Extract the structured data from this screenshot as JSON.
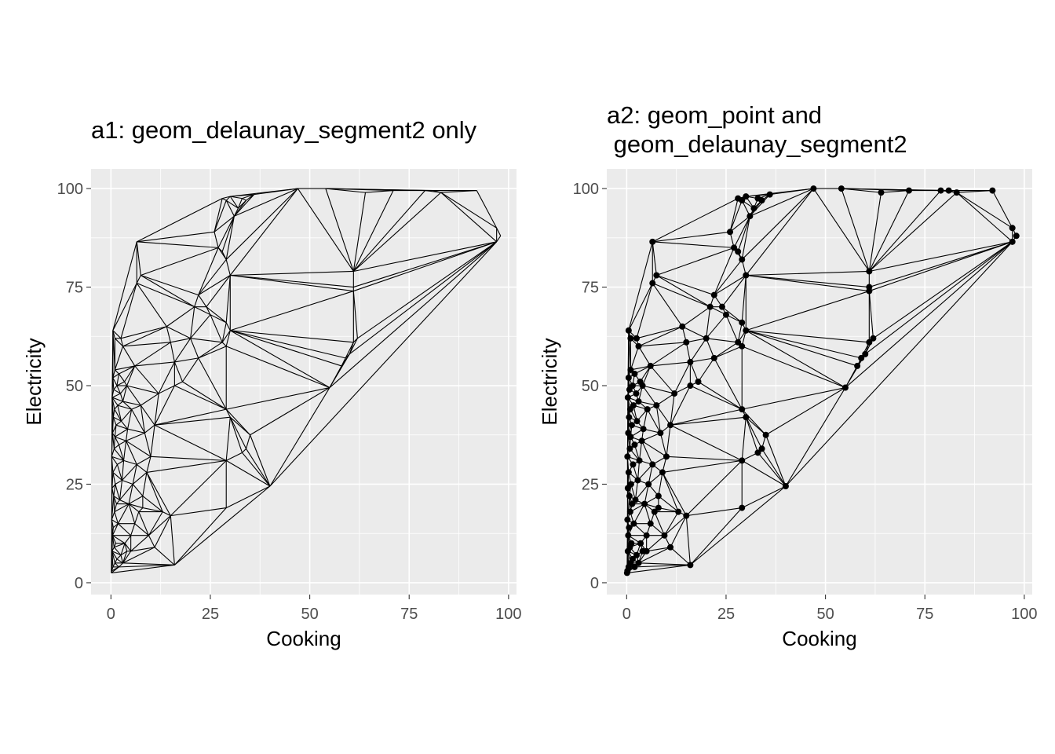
{
  "chart_data": [
    {
      "type": "scatter",
      "title_lines": [
        "a1: geom_delaunay_segment2 only"
      ],
      "xlabel": "Cooking",
      "ylabel": "Electricity",
      "xlim": [
        -5,
        102
      ],
      "ylim": [
        -3,
        105
      ],
      "xticks": [
        "0",
        "25",
        "50",
        "75",
        "100"
      ],
      "yticks": [
        "0",
        "25",
        "50",
        "75",
        "100"
      ],
      "show_points": false,
      "show_segments": true,
      "grid": true,
      "x": [
        0.1,
        0.2,
        0.5,
        1,
        1.5,
        2,
        0.3,
        0.8,
        1.2,
        0.4,
        2.5,
        3,
        0.6,
        1.8,
        0.2,
        0.9,
        3.5,
        4,
        1.4,
        0.7,
        2.2,
        5,
        0.3,
        1.1,
        2.8,
        0.5,
        6,
        1.6,
        3.2,
        0.2,
        0.8,
        4.5,
        7,
        2,
        1,
        0.4,
        3.8,
        5.5,
        8,
        1.3,
        0.6,
        2.6,
        9,
        4.2,
        0.9,
        1.7,
        6.5,
        3,
        0.3,
        10,
        2.4,
        5.2,
        0.7,
        8.5,
        1.5,
        4,
        11,
        3.4,
        0.5,
        7.5,
        2,
        12,
        6,
        1,
        16,
        9.5,
        15,
        13,
        5,
        8,
        11,
        3,
        2.5,
        16,
        6.5,
        15,
        7.5,
        14,
        28,
        30,
        29,
        33,
        36,
        32,
        31,
        34,
        26,
        27,
        28,
        29,
        30,
        22,
        24,
        25,
        29,
        30,
        29,
        28,
        20,
        21,
        22,
        18,
        16,
        35,
        34,
        33,
        29,
        30,
        29,
        40,
        29,
        47,
        54,
        64,
        61,
        61,
        61,
        71,
        79,
        81,
        83,
        92,
        97,
        98,
        97,
        59,
        60,
        61,
        62,
        58,
        55,
        0.5,
        1,
        6.5
      ],
      "y": [
        2.5,
        3,
        4,
        5,
        6,
        4,
        8,
        9,
        10,
        12,
        7,
        5,
        14,
        15,
        16,
        18,
        10,
        8,
        20,
        22,
        21,
        12,
        24,
        25,
        26,
        28,
        15,
        30,
        31,
        32,
        34,
        20,
        18,
        35,
        37,
        38,
        36,
        25,
        22,
        40,
        42,
        41,
        28,
        39,
        44,
        45,
        30,
        46,
        47,
        32,
        48,
        44,
        49,
        38,
        50,
        50,
        40,
        51,
        52,
        45,
        53,
        48,
        55,
        54,
        4.5,
        12,
        17,
        18,
        8,
        19,
        9,
        60,
        62,
        56,
        76,
        61,
        78,
        65,
        97.5,
        98,
        97,
        97.5,
        98.5,
        95,
        93,
        97,
        89,
        85,
        84,
        82,
        78,
        73,
        70,
        68,
        66,
        64,
        60,
        61,
        62,
        70,
        57,
        51,
        50,
        37.5,
        34,
        33,
        44,
        42,
        31,
        24.5,
        19,
        100,
        100,
        99,
        79,
        75,
        74,
        99.5,
        99.5,
        99.5,
        99,
        99.5,
        86.5,
        88,
        90,
        57,
        58,
        61,
        62,
        55,
        49.5,
        64,
        62,
        86.5
      ]
    },
    {
      "type": "scatter",
      "title_lines": [
        "a2: geom_point and",
        " geom_delaunay_segment2"
      ],
      "xlabel": "Cooking",
      "ylabel": "Electricity",
      "xlim": [
        -5,
        102
      ],
      "ylim": [
        -3,
        105
      ],
      "xticks": [
        "0",
        "25",
        "50",
        "75",
        "100"
      ],
      "yticks": [
        "0",
        "25",
        "50",
        "75",
        "100"
      ],
      "show_points": true,
      "show_segments": true,
      "grid": true
    }
  ]
}
